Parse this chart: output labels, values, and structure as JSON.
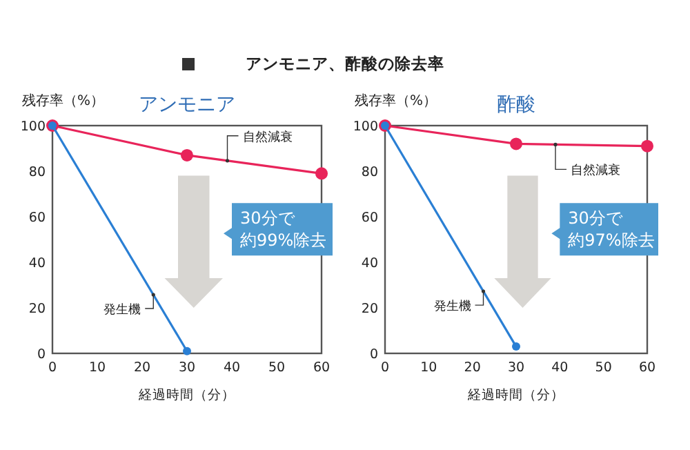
{
  "chart_data": [
    {
      "type": "line",
      "title": "アンモニア、酢酸の除去率",
      "subtitle": "アンモニア",
      "xlabel": "経過時間（分）",
      "ylabel": "残存率（%）",
      "x": [
        0,
        30,
        60
      ],
      "xlim": [
        0,
        60
      ],
      "ylim": [
        0,
        100
      ],
      "xticks": [
        0,
        10,
        20,
        30,
        40,
        50,
        60
      ],
      "yticks": [
        0,
        20,
        40,
        60,
        80,
        100
      ],
      "grid": false,
      "legend": false,
      "marker": "circle",
      "line_style": "solid",
      "series": [
        {
          "name": "自然減衰",
          "color": "#e8245a",
          "values": [
            100,
            87,
            79
          ]
        },
        {
          "name": "発生機",
          "color": "#2a7fd4",
          "values": [
            100,
            1,
            null
          ]
        }
      ],
      "annotations": [
        "30分で",
        "約99%除去"
      ]
    },
    {
      "type": "line",
      "subtitle": "酢酸",
      "xlabel": "経過時間（分）",
      "ylabel": "残存率（%）",
      "x": [
        0,
        30,
        60
      ],
      "xlim": [
        0,
        60
      ],
      "ylim": [
        0,
        100
      ],
      "xticks": [
        0,
        10,
        20,
        30,
        40,
        50,
        60
      ],
      "yticks": [
        0,
        20,
        40,
        60,
        80,
        100
      ],
      "grid": false,
      "legend": false,
      "marker": "circle",
      "line_style": "solid",
      "series": [
        {
          "name": "自然減衰",
          "color": "#e8245a",
          "values": [
            100,
            92,
            91
          ]
        },
        {
          "name": "発生機",
          "color": "#2a7fd4",
          "values": [
            100,
            3,
            null
          ]
        }
      ],
      "annotations": [
        "30分で",
        "約97%除去"
      ]
    }
  ]
}
